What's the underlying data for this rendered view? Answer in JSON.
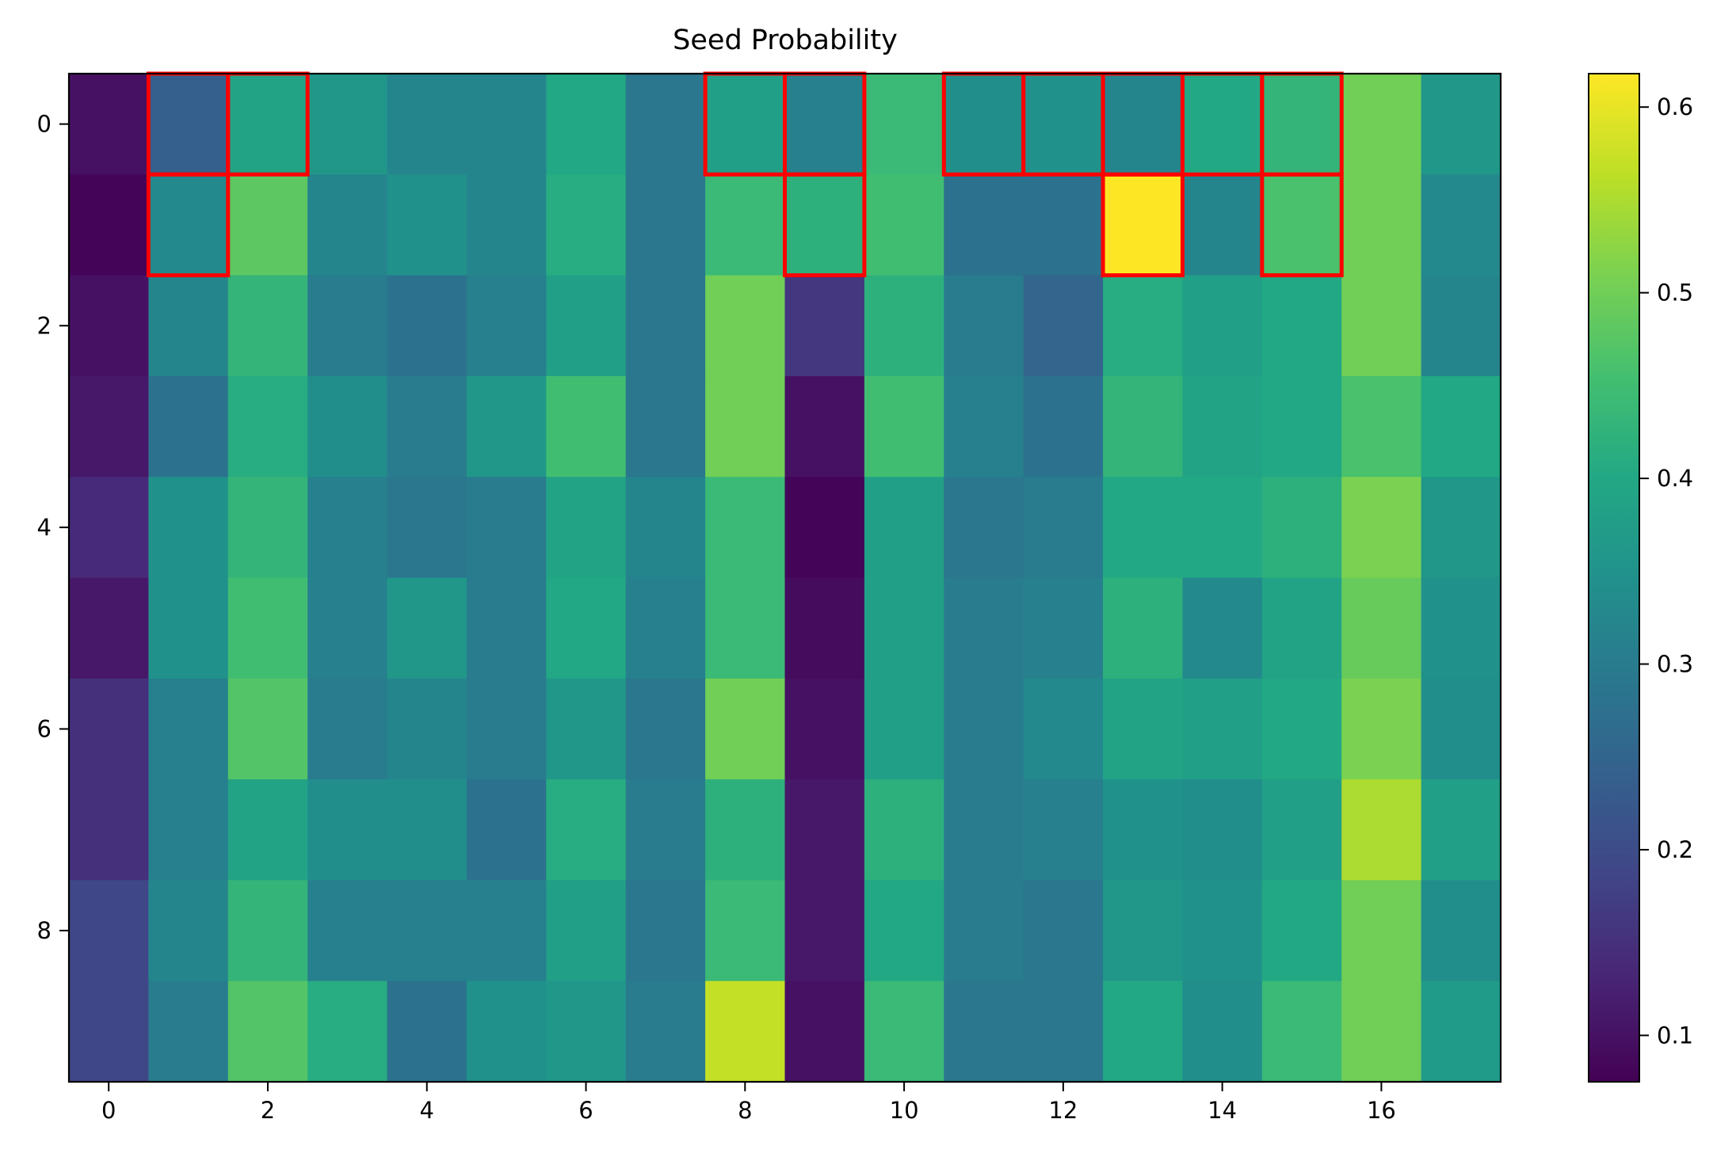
{
  "chart_data": {
    "type": "heatmap",
    "title": "Seed Probability",
    "xlabel": "",
    "ylabel": "",
    "x_ticks": [
      "0",
      "2",
      "4",
      "6",
      "8",
      "10",
      "12",
      "14",
      "16"
    ],
    "y_ticks": [
      "0",
      "2",
      "4",
      "6",
      "8"
    ],
    "colormap": "viridis",
    "vmin": 0.075,
    "vmax": 0.618,
    "colorbar_ticks": [
      "0.1",
      "0.2",
      "0.3",
      "0.4",
      "0.5",
      "0.6"
    ],
    "highlight_color": "#ff0000",
    "highlighted_cells": [
      [
        0,
        1
      ],
      [
        0,
        2
      ],
      [
        0,
        8
      ],
      [
        0,
        9
      ],
      [
        0,
        11
      ],
      [
        0,
        12
      ],
      [
        0,
        13
      ],
      [
        0,
        14
      ],
      [
        0,
        15
      ],
      [
        1,
        1
      ],
      [
        1,
        9
      ],
      [
        1,
        13
      ],
      [
        1,
        15
      ]
    ],
    "values": [
      [
        0.1,
        0.24,
        0.39,
        0.36,
        0.32,
        0.32,
        0.4,
        0.29,
        0.38,
        0.31,
        0.44,
        0.34,
        0.35,
        0.32,
        0.4,
        0.43,
        0.5,
        0.36
      ],
      [
        0.08,
        0.33,
        0.48,
        0.32,
        0.35,
        0.32,
        0.41,
        0.29,
        0.44,
        0.42,
        0.45,
        0.28,
        0.28,
        0.62,
        0.32,
        0.46,
        0.5,
        0.33
      ],
      [
        0.1,
        0.32,
        0.43,
        0.3,
        0.28,
        0.31,
        0.38,
        0.29,
        0.5,
        0.16,
        0.42,
        0.3,
        0.25,
        0.41,
        0.38,
        0.4,
        0.5,
        0.32
      ],
      [
        0.11,
        0.28,
        0.41,
        0.34,
        0.3,
        0.36,
        0.45,
        0.29,
        0.5,
        0.1,
        0.45,
        0.31,
        0.28,
        0.43,
        0.39,
        0.4,
        0.46,
        0.4
      ],
      [
        0.14,
        0.35,
        0.43,
        0.31,
        0.29,
        0.3,
        0.39,
        0.32,
        0.44,
        0.08,
        0.38,
        0.29,
        0.3,
        0.4,
        0.4,
        0.42,
        0.51,
        0.36
      ],
      [
        0.11,
        0.35,
        0.45,
        0.31,
        0.36,
        0.3,
        0.4,
        0.31,
        0.44,
        0.09,
        0.38,
        0.3,
        0.31,
        0.42,
        0.33,
        0.39,
        0.49,
        0.35
      ],
      [
        0.15,
        0.31,
        0.47,
        0.3,
        0.32,
        0.3,
        0.36,
        0.29,
        0.5,
        0.1,
        0.38,
        0.3,
        0.33,
        0.39,
        0.38,
        0.4,
        0.51,
        0.34
      ],
      [
        0.15,
        0.31,
        0.39,
        0.34,
        0.34,
        0.28,
        0.41,
        0.3,
        0.42,
        0.11,
        0.42,
        0.3,
        0.31,
        0.35,
        0.34,
        0.38,
        0.55,
        0.38
      ],
      [
        0.19,
        0.32,
        0.43,
        0.31,
        0.31,
        0.31,
        0.38,
        0.29,
        0.44,
        0.11,
        0.4,
        0.3,
        0.29,
        0.36,
        0.35,
        0.4,
        0.5,
        0.34
      ],
      [
        0.19,
        0.3,
        0.47,
        0.41,
        0.28,
        0.35,
        0.36,
        0.3,
        0.57,
        0.1,
        0.44,
        0.29,
        0.29,
        0.4,
        0.34,
        0.44,
        0.5,
        0.37
      ]
    ]
  }
}
